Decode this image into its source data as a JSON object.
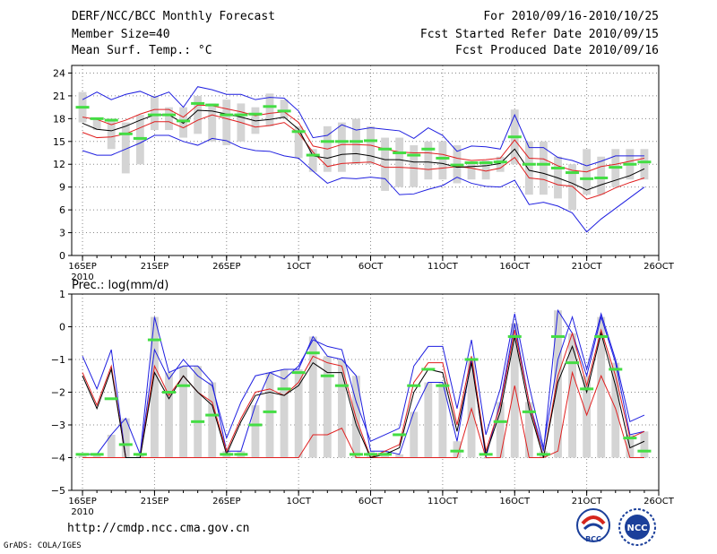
{
  "header": {
    "title": "DERF/NCC/BCC Monthly Forecast",
    "member": "Member Size=40",
    "variable": "Mean Surf. Temp.: °C",
    "period": "For 2010/09/16-2010/10/25",
    "refer": "Fcst Started Refer Date 2010/09/15",
    "produced": "Fcst Produced Date 2010/09/16"
  },
  "footer": {
    "url": "http://cmdp.ncc.cma.gov.cn",
    "grads": "GrADS: COLA/IGES"
  },
  "logos": {
    "bcc": "BCC",
    "ncc": "NCC"
  },
  "colors": {
    "max": "#1f1fe0",
    "min": "#1f1fe0",
    "upper": "#e01f1f",
    "lower": "#e01f1f",
    "mean": "#000000",
    "median": "#44dd44",
    "box": "#d4d4d4"
  },
  "chart_data": [
    {
      "type": "line",
      "title": "Mean Surf. Temp.: °C",
      "x": [
        1,
        2,
        3,
        4,
        5,
        6,
        7,
        8,
        9,
        10,
        11,
        12,
        13,
        14,
        15,
        16,
        17,
        18,
        19,
        20,
        21,
        22,
        23,
        24,
        25,
        26,
        27,
        28,
        29,
        30,
        31,
        32,
        33,
        34,
        35,
        36,
        37,
        38,
        39,
        40
      ],
      "xticks": [
        {
          "day": 1,
          "label": "16SEP"
        },
        {
          "day": 6,
          "label": "21SEP"
        },
        {
          "day": 11,
          "label": "26SEP"
        },
        {
          "day": 16,
          "label": "1OCT"
        },
        {
          "day": 21,
          "label": "6OCT"
        },
        {
          "day": 26,
          "label": "11OCT"
        },
        {
          "day": 31,
          "label": "16OCT"
        },
        {
          "day": 36,
          "label": "21OCT"
        },
        {
          "day": 41,
          "label": "26OCT"
        }
      ],
      "year_label": "2010",
      "xlim": [
        0.25,
        41
      ],
      "ylim": [
        0,
        25
      ],
      "yticks": [
        0,
        3,
        6,
        9,
        12,
        15,
        18,
        21,
        24
      ],
      "grid": true,
      "series": [
        {
          "name": "max",
          "values": [
            13.8,
            13.2,
            13.2,
            14,
            14.8,
            15.8,
            15.8,
            15,
            14.5,
            15.4,
            15.1,
            14.2,
            13.8,
            13.7,
            13.1,
            12.8,
            11.1,
            9.5,
            10.2,
            10.1,
            10.3,
            10.1,
            8,
            8.1,
            8.7,
            9.2,
            10.3,
            9.5,
            9.1,
            9,
            9.9,
            6.7,
            7,
            6.5,
            5.6,
            3.1,
            4.8,
            6.2,
            7.6,
            9
          ]
        },
        {
          "name": "lower",
          "values": [
            16.2,
            15.5,
            15.6,
            16,
            16.8,
            17.6,
            17.6,
            16.8,
            17.8,
            18.5,
            18,
            17.5,
            16.9,
            17.1,
            17.5,
            16.1,
            13.6,
            11.7,
            12.1,
            12.2,
            12.3,
            11.6,
            11.6,
            11.5,
            11.3,
            11.5,
            11.7,
            11.5,
            11.1,
            11.5,
            12.9,
            10.2,
            10,
            9.3,
            9.1,
            7.4,
            8,
            8.9,
            9.6,
            10.2
          ]
        }
      ],
      "upper_extreme": [
        20.5,
        21.5,
        20.5,
        21.2,
        21.6,
        20.8,
        21.5,
        19.5,
        22.2,
        21.8,
        21.2,
        21.2,
        20.5,
        20.8,
        20.7,
        19,
        15.5,
        15.8,
        17.2,
        16.5,
        16.8,
        16.6,
        16.4,
        15.4,
        16.8,
        15.8,
        13.7,
        14.4,
        14.3,
        14,
        18.5,
        14.2,
        14.2,
        12.9,
        12.5,
        11.8,
        12.4,
        13.1,
        13.1,
        13.1
      ],
      "upper_bound": [
        18.2,
        17.9,
        17.2,
        17.8,
        18.6,
        19.2,
        19.2,
        18.2,
        19.8,
        19.7,
        19.3,
        18.9,
        18.4,
        18.7,
        18.9,
        17.5,
        14.4,
        14,
        14.6,
        14.6,
        14.5,
        14,
        13.6,
        13.5,
        13.5,
        13.3,
        12.8,
        12.5,
        12.6,
        12.8,
        15.2,
        12.8,
        12.7,
        11.8,
        11.2,
        11,
        11.7,
        12,
        12.4,
        12.8
      ],
      "mean": [
        17.4,
        16.6,
        16.4,
        17,
        17.8,
        18.5,
        18.5,
        17.4,
        19.1,
        19,
        18.6,
        18.2,
        17.7,
        17.9,
        18.2,
        16.6,
        13.1,
        12.8,
        13.3,
        13.4,
        13.1,
        12.6,
        12.6,
        12.3,
        12.3,
        12.1,
        11.6,
        11.7,
        11.8,
        12.1,
        14,
        11.2,
        10.8,
        10.2,
        9.5,
        8.6,
        9.3,
        9.9,
        10.5,
        11.4
      ],
      "box_ranges": [
        [
          17.5,
          21.5
        ],
        [
          16.5,
          18
        ],
        [
          14,
          18
        ],
        [
          10.8,
          17.5
        ],
        [
          12,
          18.5
        ],
        [
          16.5,
          21
        ],
        [
          16.5,
          19.5
        ],
        [
          15.5,
          19.5
        ],
        [
          16,
          21
        ],
        [
          15,
          20
        ],
        [
          14.5,
          20.5
        ],
        [
          15,
          20
        ],
        [
          16,
          19.5
        ],
        [
          17,
          21.3
        ],
        [
          18,
          20.5
        ],
        [
          12.8,
          17
        ],
        [
          11,
          14
        ],
        [
          11,
          17
        ],
        [
          11,
          17.5
        ],
        [
          12,
          18
        ],
        [
          12,
          17
        ],
        [
          8.5,
          15.5
        ],
        [
          9,
          15.5
        ],
        [
          9,
          14.5
        ],
        [
          10,
          15
        ],
        [
          10,
          15
        ],
        [
          9.5,
          14.5
        ],
        [
          10,
          12.2
        ],
        [
          10,
          12.5
        ],
        [
          11,
          13
        ],
        [
          12,
          19.2
        ],
        [
          8,
          15
        ],
        [
          8,
          15
        ],
        [
          7.5,
          13
        ],
        [
          6,
          12
        ],
        [
          8,
          14
        ],
        [
          8,
          13
        ],
        [
          9,
          14
        ],
        [
          10,
          14
        ],
        [
          10,
          14
        ]
      ],
      "median_marks": [
        19.5,
        18,
        17.8,
        16,
        15.4,
        18.5,
        18.5,
        17.7,
        20,
        19.8,
        18.5,
        18.5,
        18.6,
        19.6,
        19,
        16.3,
        13.2,
        15,
        15,
        15,
        15.1,
        14,
        13.5,
        13.2,
        14,
        12.8,
        11.9,
        12.2,
        12.2,
        12.3,
        15.6,
        12,
        12,
        11.5,
        10.9,
        10.1,
        10.2,
        11.6,
        12,
        12.3
      ]
    },
    {
      "type": "line",
      "title": "Prec.: log(mm/d)",
      "x": [
        1,
        2,
        3,
        4,
        5,
        6,
        7,
        8,
        9,
        10,
        11,
        12,
        13,
        14,
        15,
        16,
        17,
        18,
        19,
        20,
        21,
        22,
        23,
        24,
        25,
        26,
        27,
        28,
        29,
        30,
        31,
        32,
        33,
        34,
        35,
        36,
        37,
        38,
        39,
        40
      ],
      "xticks": [
        {
          "day": 1,
          "label": "16SEP"
        },
        {
          "day": 6,
          "label": "21SEP"
        },
        {
          "day": 11,
          "label": "26SEP"
        },
        {
          "day": 16,
          "label": "1OCT"
        },
        {
          "day": 21,
          "label": "6OCT"
        },
        {
          "day": 26,
          "label": "11OCT"
        },
        {
          "day": 31,
          "label": "16OCT"
        },
        {
          "day": 36,
          "label": "21OCT"
        },
        {
          "day": 41,
          "label": "26OCT"
        }
      ],
      "year_label": "2010",
      "xlim": [
        0.25,
        41
      ],
      "ylim": [
        -5,
        1
      ],
      "yticks": [
        -5,
        -4,
        -3,
        -2,
        -1,
        0,
        1
      ],
      "grid": true,
      "series": [
        {
          "name": "max",
          "values": [
            -0.9,
            -1.9,
            -0.7,
            -4,
            -4,
            -0.7,
            -1.6,
            -1,
            -1.5,
            -1.8,
            -3.4,
            -2.3,
            -1.5,
            -1.4,
            -1.6,
            -1.2,
            -0.4,
            -0.6,
            -0.7,
            -2.3,
            -3.5,
            -3.3,
            -3.1,
            -1.2,
            -0.6,
            -0.6,
            -2.5,
            -0.4,
            -3.3,
            -1.9,
            0.4,
            -1.8,
            -3.7,
            -1,
            0.3,
            -1.3,
            0.4,
            -1,
            -2.9,
            -2.7
          ]
        },
        {
          "name": "lower",
          "values": [
            -4,
            -4,
            -4,
            -4,
            -4,
            -4,
            -4,
            -4,
            -4,
            -4,
            -4,
            -4,
            -4,
            -4,
            -4,
            -4,
            -3.3,
            -3.3,
            -3.1,
            -4,
            -4,
            -4,
            -4,
            -4,
            -4,
            -4,
            -4,
            -2.5,
            -4,
            -4,
            -1.8,
            -4,
            -4,
            -3.8,
            -1.4,
            -2.7,
            -1.5,
            -2.5,
            -4,
            -4
          ]
        }
      ],
      "upper_extreme": [
        -3.9,
        -3.9,
        -3.3,
        -2.8,
        -3.9,
        0.3,
        -1.4,
        -1.2,
        -1.2,
        -1.7,
        -3.8,
        -3.8,
        -2.4,
        -1.4,
        -1.3,
        -1.3,
        -0.3,
        -0.9,
        -1,
        -1.5,
        -3.8,
        -3.8,
        -3.9,
        -2.6,
        -1.7,
        -1.7,
        -3.5,
        -1,
        -4,
        -2.3,
        0.1,
        -2.3,
        -3.8,
        0.5,
        -0.2,
        -1.5,
        0.3,
        -1.1,
        -3.3,
        -3.2
      ],
      "upper_bound": [
        -1.4,
        -2.4,
        -1.2,
        -4,
        -4,
        -1.2,
        -2.1,
        -1.5,
        -2,
        -2.3,
        -3.8,
        -2.8,
        -2,
        -1.9,
        -2.1,
        -1.7,
        -0.9,
        -1.1,
        -1.2,
        -2.8,
        -4,
        -3.8,
        -3.6,
        -1.7,
        -1.1,
        -1.1,
        -3,
        -0.9,
        -3.8,
        -2.4,
        -0.1,
        -2.3,
        -4,
        -1.5,
        -0.2,
        -1.8,
        -0.1,
        -1.5,
        -3.4,
        -3.2
      ],
      "mean": [
        -1.5,
        -2.5,
        -1.3,
        -4,
        -4,
        -1.4,
        -2.2,
        -1.5,
        -2,
        -2.4,
        -3.9,
        -2.9,
        -2.1,
        -2,
        -2.1,
        -1.8,
        -1.1,
        -1.4,
        -1.4,
        -3,
        -4,
        -3.9,
        -3.7,
        -2,
        -1.3,
        -1.4,
        -3.2,
        -1.1,
        -3.9,
        -2.6,
        -0.3,
        -2.5,
        -4,
        -1.7,
        -0.6,
        -2,
        -0.2,
        -1.8,
        -3.7,
        -3.5
      ],
      "box_ranges": [
        [
          -4,
          -3.9
        ],
        [
          -4,
          -3.9
        ],
        [
          -4,
          -3.3
        ],
        [
          -4,
          -2.8
        ],
        [
          -4,
          -3.9
        ],
        [
          -4,
          0.3
        ],
        [
          -4,
          -1.4
        ],
        [
          -4,
          -1.2
        ],
        [
          -4,
          -1.2
        ],
        [
          -4,
          -1.7
        ],
        [
          -4,
          -3.8
        ],
        [
          -4,
          -3.8
        ],
        [
          -4,
          -2.4
        ],
        [
          -4,
          -1.4
        ],
        [
          -4,
          -1.3
        ],
        [
          -4,
          -1.3
        ],
        [
          -4,
          -0.3
        ],
        [
          -4,
          -0.9
        ],
        [
          -4,
          -1
        ],
        [
          -4,
          -1.5
        ],
        [
          -4,
          -3.8
        ],
        [
          -4,
          -3.8
        ],
        [
          -4,
          -3.9
        ],
        [
          -4,
          -2.6
        ],
        [
          -4,
          -1.7
        ],
        [
          -4,
          -1.7
        ],
        [
          -4,
          -3.5
        ],
        [
          -4,
          -1
        ],
        [
          -4,
          -4
        ],
        [
          -4,
          -2.3
        ],
        [
          -4,
          0.1
        ],
        [
          -4,
          -2.3
        ],
        [
          -4,
          -3.8
        ],
        [
          -4,
          0.5
        ],
        [
          -4,
          -0.2
        ],
        [
          -4,
          -1.5
        ],
        [
          -4,
          0.3
        ],
        [
          -4,
          -1.1
        ],
        [
          -4,
          -3.3
        ],
        [
          -4,
          -3.2
        ]
      ],
      "median_marks": [
        -3.9,
        -3.9,
        -2.2,
        -3.6,
        -3.9,
        -0.4,
        -2,
        -1.8,
        -2.9,
        -2.7,
        -3.9,
        -3.9,
        -3,
        -2.6,
        -1.9,
        -1.4,
        -0.8,
        -1.5,
        -1.8,
        -3.9,
        -3.9,
        -3.9,
        -3.3,
        -1.8,
        -1.3,
        -1.8,
        -3.8,
        -1,
        -3.9,
        -2.9,
        -0.3,
        -2.6,
        -3.9,
        -0.3,
        -1.1,
        -1.9,
        -0.3,
        -1.3,
        -3.4,
        -3.8
      ]
    }
  ]
}
